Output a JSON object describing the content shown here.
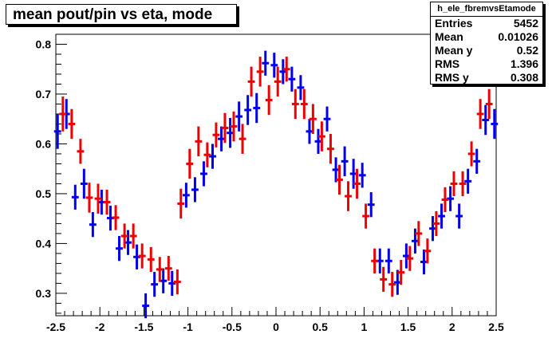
{
  "title": "mean pout/pin vs eta, mode",
  "stats": {
    "name": "h_ele_fbremvsEtamode",
    "rows": [
      {
        "label": "Entries",
        "value": "5452"
      },
      {
        "label": "Mean",
        "value": "0.01026"
      },
      {
        "label": "Mean y",
        "value": "0.52"
      },
      {
        "label": "RMS",
        "value": "1.396"
      },
      {
        "label": "RMS y",
        "value": "0.308"
      }
    ]
  },
  "colors": {
    "series_blue": "#0000ee",
    "series_red": "#ee0000",
    "axis": "#000000"
  },
  "chart_data": {
    "type": "scatter",
    "title": "mean pout/pin vs eta, mode",
    "xlabel": "",
    "ylabel": "",
    "xlim": [
      -2.5,
      2.5
    ],
    "ylim": [
      0.255,
      0.82
    ],
    "x_ticks": [
      "-2.5",
      "-2",
      "-1.5",
      "-1",
      "-0.5",
      "0",
      "0.5",
      "1",
      "1.5",
      "2",
      "2.5"
    ],
    "y_ticks": [
      "0.3",
      "0.4",
      "0.5",
      "0.6",
      "0.7",
      "0.8"
    ],
    "grid": false,
    "bin_half_width": 0.04,
    "series": [
      {
        "color": "#0000ee",
        "points": [
          {
            "x": -2.48,
            "y": 0.625,
            "err": 0.035
          },
          {
            "x": -2.38,
            "y": 0.66,
            "err": 0.03
          },
          {
            "x": -2.28,
            "y": 0.493,
            "err": 0.025
          },
          {
            "x": -2.18,
            "y": 0.52,
            "err": 0.03
          },
          {
            "x": -2.08,
            "y": 0.438,
            "err": 0.025
          },
          {
            "x": -1.98,
            "y": 0.483,
            "err": 0.025
          },
          {
            "x": -1.88,
            "y": 0.451,
            "err": 0.025
          },
          {
            "x": -1.78,
            "y": 0.39,
            "err": 0.025
          },
          {
            "x": -1.68,
            "y": 0.402,
            "err": 0.025
          },
          {
            "x": -1.58,
            "y": 0.373,
            "err": 0.025
          },
          {
            "x": -1.48,
            "y": 0.275,
            "err": 0.025
          },
          {
            "x": -1.38,
            "y": 0.318,
            "err": 0.025
          },
          {
            "x": -1.28,
            "y": 0.325,
            "err": 0.025
          },
          {
            "x": -1.18,
            "y": 0.32,
            "err": 0.025
          },
          {
            "x": -1.02,
            "y": 0.497,
            "err": 0.025
          },
          {
            "x": -0.92,
            "y": 0.508,
            "err": 0.025
          },
          {
            "x": -0.82,
            "y": 0.54,
            "err": 0.025
          },
          {
            "x": -0.72,
            "y": 0.575,
            "err": 0.025
          },
          {
            "x": -0.62,
            "y": 0.61,
            "err": 0.025
          },
          {
            "x": -0.52,
            "y": 0.622,
            "err": 0.03
          },
          {
            "x": -0.42,
            "y": 0.655,
            "err": 0.03
          },
          {
            "x": -0.32,
            "y": 0.668,
            "err": 0.03
          },
          {
            "x": -0.22,
            "y": 0.672,
            "err": 0.03
          },
          {
            "x": -0.12,
            "y": 0.762,
            "err": 0.025
          },
          {
            "x": -0.02,
            "y": 0.758,
            "err": 0.025
          },
          {
            "x": 0.08,
            "y": 0.745,
            "err": 0.025
          },
          {
            "x": 0.18,
            "y": 0.73,
            "err": 0.025
          },
          {
            "x": 0.28,
            "y": 0.713,
            "err": 0.025
          },
          {
            "x": 0.38,
            "y": 0.625,
            "err": 0.025
          },
          {
            "x": 0.48,
            "y": 0.605,
            "err": 0.025
          },
          {
            "x": 0.58,
            "y": 0.65,
            "err": 0.025
          },
          {
            "x": 0.68,
            "y": 0.548,
            "err": 0.025
          },
          {
            "x": 0.78,
            "y": 0.565,
            "err": 0.03
          },
          {
            "x": 0.88,
            "y": 0.54,
            "err": 0.03
          },
          {
            "x": 0.98,
            "y": 0.537,
            "err": 0.025
          },
          {
            "x": 1.08,
            "y": 0.478,
            "err": 0.025
          },
          {
            "x": 1.18,
            "y": 0.365,
            "err": 0.025
          },
          {
            "x": 1.28,
            "y": 0.365,
            "err": 0.025
          },
          {
            "x": 1.38,
            "y": 0.322,
            "err": 0.025
          },
          {
            "x": 1.48,
            "y": 0.375,
            "err": 0.025
          },
          {
            "x": 1.58,
            "y": 0.405,
            "err": 0.025
          },
          {
            "x": 1.68,
            "y": 0.363,
            "err": 0.025
          },
          {
            "x": 1.78,
            "y": 0.43,
            "err": 0.025
          },
          {
            "x": 1.88,
            "y": 0.455,
            "err": 0.025
          },
          {
            "x": 1.98,
            "y": 0.49,
            "err": 0.025
          },
          {
            "x": 2.08,
            "y": 0.455,
            "err": 0.025
          },
          {
            "x": 2.18,
            "y": 0.525,
            "err": 0.025
          },
          {
            "x": 2.28,
            "y": 0.565,
            "err": 0.025
          },
          {
            "x": 2.38,
            "y": 0.648,
            "err": 0.03
          },
          {
            "x": 2.48,
            "y": 0.64,
            "err": 0.03
          }
        ]
      },
      {
        "color": "#ee0000",
        "points": [
          {
            "x": -2.42,
            "y": 0.66,
            "err": 0.035
          },
          {
            "x": -2.32,
            "y": 0.64,
            "err": 0.03
          },
          {
            "x": -2.22,
            "y": 0.585,
            "err": 0.025
          },
          {
            "x": -2.12,
            "y": 0.492,
            "err": 0.03
          },
          {
            "x": -2.02,
            "y": 0.49,
            "err": 0.03
          },
          {
            "x": -1.92,
            "y": 0.483,
            "err": 0.025
          },
          {
            "x": -1.82,
            "y": 0.452,
            "err": 0.025
          },
          {
            "x": -1.72,
            "y": 0.415,
            "err": 0.025
          },
          {
            "x": -1.62,
            "y": 0.415,
            "err": 0.025
          },
          {
            "x": -1.52,
            "y": 0.375,
            "err": 0.025
          },
          {
            "x": -1.42,
            "y": 0.368,
            "err": 0.025
          },
          {
            "x": -1.32,
            "y": 0.348,
            "err": 0.025
          },
          {
            "x": -1.22,
            "y": 0.35,
            "err": 0.025
          },
          {
            "x": -1.12,
            "y": 0.323,
            "err": 0.025
          },
          {
            "x": -1.08,
            "y": 0.48,
            "err": 0.03
          },
          {
            "x": -0.98,
            "y": 0.56,
            "err": 0.03
          },
          {
            "x": -0.88,
            "y": 0.605,
            "err": 0.03
          },
          {
            "x": -0.78,
            "y": 0.578,
            "err": 0.025
          },
          {
            "x": -0.68,
            "y": 0.618,
            "err": 0.025
          },
          {
            "x": -0.58,
            "y": 0.632,
            "err": 0.03
          },
          {
            "x": -0.48,
            "y": 0.635,
            "err": 0.03
          },
          {
            "x": -0.38,
            "y": 0.61,
            "err": 0.03
          },
          {
            "x": -0.28,
            "y": 0.725,
            "err": 0.03
          },
          {
            "x": -0.18,
            "y": 0.745,
            "err": 0.03
          },
          {
            "x": -0.08,
            "y": 0.688,
            "err": 0.03
          },
          {
            "x": 0.02,
            "y": 0.725,
            "err": 0.03
          },
          {
            "x": 0.12,
            "y": 0.75,
            "err": 0.025
          },
          {
            "x": 0.22,
            "y": 0.68,
            "err": 0.03
          },
          {
            "x": 0.32,
            "y": 0.68,
            "err": 0.03
          },
          {
            "x": 0.42,
            "y": 0.65,
            "err": 0.03
          },
          {
            "x": 0.52,
            "y": 0.615,
            "err": 0.03
          },
          {
            "x": 0.62,
            "y": 0.59,
            "err": 0.03
          },
          {
            "x": 0.72,
            "y": 0.528,
            "err": 0.03
          },
          {
            "x": 0.82,
            "y": 0.495,
            "err": 0.03
          },
          {
            "x": 0.92,
            "y": 0.52,
            "err": 0.03
          },
          {
            "x": 1.02,
            "y": 0.455,
            "err": 0.025
          },
          {
            "x": 1.12,
            "y": 0.365,
            "err": 0.025
          },
          {
            "x": 1.22,
            "y": 0.328,
            "err": 0.025
          },
          {
            "x": 1.32,
            "y": 0.318,
            "err": 0.025
          },
          {
            "x": 1.42,
            "y": 0.342,
            "err": 0.025
          },
          {
            "x": 1.52,
            "y": 0.37,
            "err": 0.025
          },
          {
            "x": 1.62,
            "y": 0.42,
            "err": 0.025
          },
          {
            "x": 1.72,
            "y": 0.385,
            "err": 0.025
          },
          {
            "x": 1.82,
            "y": 0.44,
            "err": 0.025
          },
          {
            "x": 1.92,
            "y": 0.488,
            "err": 0.025
          },
          {
            "x": 2.02,
            "y": 0.52,
            "err": 0.025
          },
          {
            "x": 2.12,
            "y": 0.52,
            "err": 0.025
          },
          {
            "x": 2.22,
            "y": 0.58,
            "err": 0.025
          },
          {
            "x": 2.32,
            "y": 0.66,
            "err": 0.03
          },
          {
            "x": 2.42,
            "y": 0.68,
            "err": 0.03
          }
        ]
      }
    ]
  }
}
